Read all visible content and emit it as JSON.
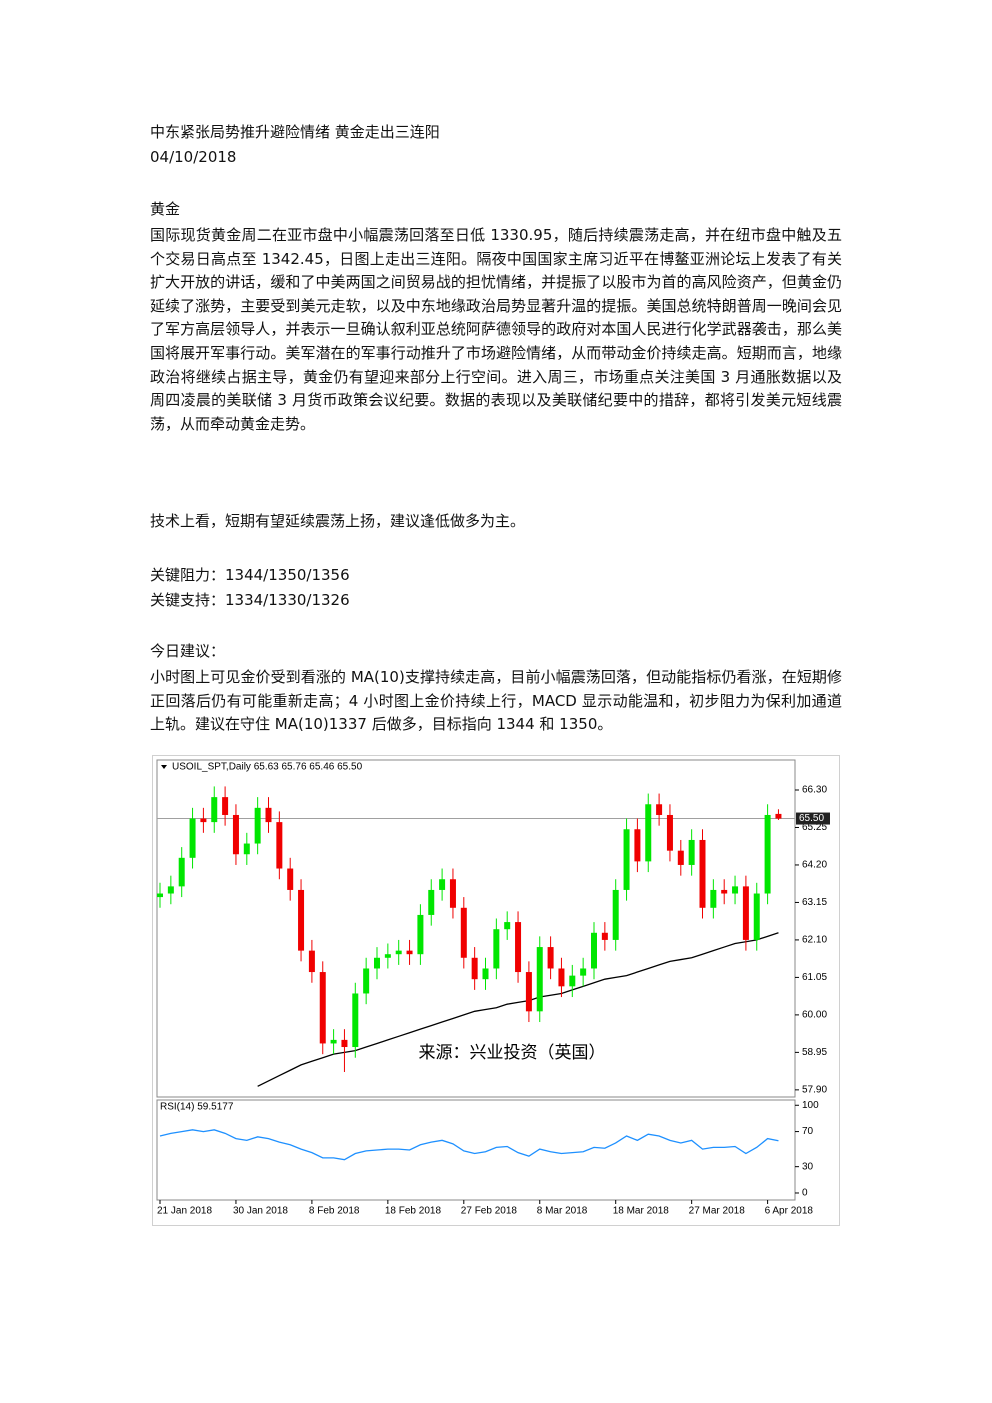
{
  "header": {
    "title": "中东紧张局势推升避险情绪  黄金走出三连阳",
    "date": "04/10/2018"
  },
  "section": "黄金",
  "paragraphs": [
    "国际现货黄金周二在亚市盘中小幅震荡回落至日低 1330.95，随后持续震荡走高，并在纽市盘中触及五个交易日高点至 1342.45，日图上走出三连阳。隔夜中国国家主席习近平在博鳌亚洲论坛上发表了有关扩大开放的讲话，缓和了中美两国之间贸易战的担忧情绪，并提振了以股市为首的高风险资产，但黄金仍延续了涨势，主要受到美元走软，以及中东地缘政治局势显著升温的提振。美国总统特朗普周一晚间会见了军方高层领导人，并表示一旦确认叙利亚总统阿萨德领导的政府对本国人民进行化学武器袭击，那么美国将展开军事行动。美军潜在的军事行动推升了市场避险情绪，从而带动金价持续走高。短期而言，地缘政治将继续占据主导，黄金仍有望迎来部分上行空间。进入周三，市场重点关注美国 3 月通胀数据以及周四凌晨的美联储 3 月货币政策会议纪要。数据的表现以及美联储纪要中的措辞，都将引发美元短线震荡，从而牵动黄金走势。",
    "技术上看，短期有望延续震荡上扬，建议逢低做多为主。"
  ],
  "levels": [
    "关键阻力：1344/1350/1356",
    "关键支持：1334/1330/1326"
  ],
  "advice_heading": "今日建议：",
  "advice": "小时图上可见金价受到看涨的 MA(10)支撑持续走高，目前小幅震荡回落，但动能指标仍看涨，在短期修正回落后仍有可能重新走高；4 小时图上金价持续上行，MACD 显示动能温和，初步阻力为保利加通道上轨。建议在守住 MA(10)1337 后做多，目标指向 1344 和 1350。",
  "chart_data": {
    "type": "candlestick",
    "title": "USOIL_SPT,Daily  65.63 65.76 65.46 65.50",
    "annotation": "来源：兴业投资（英国）",
    "x": [
      "21 Jan 2018",
      null,
      null,
      null,
      null,
      null,
      null,
      "30 Jan 2018",
      null,
      null,
      null,
      null,
      null,
      null,
      "8 Feb 2018",
      null,
      null,
      null,
      null,
      null,
      null,
      "18 Feb 2018",
      null,
      null,
      null,
      null,
      null,
      null,
      "27 Feb 2018",
      null,
      null,
      null,
      null,
      null,
      null,
      "8 Mar 2018",
      null,
      null,
      null,
      null,
      null,
      null,
      "18 Mar 2018",
      null,
      null,
      null,
      null,
      null,
      null,
      "27 Mar 2018",
      null,
      null,
      null,
      null,
      null,
      null,
      "6 Apr 2018",
      null
    ],
    "open": [
      63.3,
      63.4,
      63.6,
      64.4,
      65.5,
      65.4,
      66.1,
      65.6,
      64.5,
      64.8,
      65.8,
      65.4,
      64.1,
      63.5,
      61.8,
      61.2,
      59.2,
      59.3,
      59.1,
      60.6,
      61.3,
      61.6,
      61.7,
      61.8,
      61.7,
      62.8,
      63.5,
      63.8,
      63.0,
      61.6,
      61.0,
      61.3,
      62.4,
      62.6,
      61.2,
      60.1,
      61.9,
      61.3,
      60.8,
      61.1,
      61.3,
      62.3,
      62.1,
      63.5,
      65.2,
      64.3,
      65.9,
      65.6,
      64.6,
      64.2,
      64.9,
      63.0,
      63.5,
      63.4,
      63.6,
      62.1,
      63.4,
      65.63
    ],
    "high": [
      63.7,
      63.9,
      64.7,
      65.8,
      65.8,
      66.4,
      66.4,
      65.9,
      65.1,
      66.1,
      66.1,
      65.7,
      64.4,
      63.8,
      62.1,
      61.5,
      59.6,
      59.6,
      60.9,
      61.6,
      61.9,
      62.0,
      62.1,
      62.1,
      63.1,
      63.8,
      64.1,
      64.1,
      63.3,
      61.9,
      61.6,
      62.7,
      62.9,
      62.9,
      61.5,
      62.2,
      62.2,
      61.6,
      61.4,
      61.6,
      62.6,
      62.6,
      63.8,
      65.5,
      65.5,
      66.2,
      66.2,
      65.9,
      64.9,
      65.2,
      65.2,
      63.8,
      63.8,
      63.9,
      63.9,
      63.7,
      65.9,
      65.76
    ],
    "low": [
      63.0,
      63.1,
      63.3,
      64.1,
      65.1,
      65.1,
      65.3,
      64.2,
      64.2,
      64.5,
      65.1,
      63.8,
      63.2,
      61.5,
      60.9,
      58.9,
      58.9,
      58.4,
      58.8,
      60.3,
      61.0,
      61.3,
      61.4,
      61.4,
      61.4,
      62.5,
      63.2,
      62.7,
      61.3,
      60.7,
      60.7,
      61.0,
      62.1,
      60.9,
      59.8,
      59.8,
      61.0,
      60.5,
      60.5,
      60.8,
      61.0,
      61.8,
      61.8,
      63.2,
      64.0,
      64.0,
      65.3,
      64.3,
      63.9,
      63.9,
      62.7,
      62.7,
      63.1,
      63.1,
      61.8,
      61.8,
      63.1,
      65.46
    ],
    "close": [
      63.4,
      63.6,
      64.4,
      65.5,
      65.4,
      66.1,
      65.6,
      64.5,
      64.8,
      65.8,
      65.4,
      64.1,
      63.5,
      61.8,
      61.2,
      59.2,
      59.3,
      59.1,
      60.6,
      61.3,
      61.6,
      61.7,
      61.8,
      61.7,
      62.8,
      63.5,
      63.8,
      63.0,
      61.6,
      61.0,
      61.3,
      62.4,
      62.6,
      61.2,
      60.1,
      61.9,
      61.3,
      60.8,
      61.1,
      61.3,
      62.3,
      62.1,
      63.5,
      65.2,
      64.3,
      65.9,
      65.6,
      64.6,
      64.2,
      64.9,
      63.0,
      63.5,
      63.4,
      63.6,
      62.1,
      63.4,
      65.6,
      65.5
    ],
    "up_color": "#00e600",
    "down_color": "#f00000",
    "ma": {
      "color": "#000000",
      "values": [
        null,
        null,
        null,
        null,
        null,
        null,
        null,
        null,
        null,
        58.0,
        58.15,
        58.3,
        58.45,
        58.6,
        58.7,
        58.8,
        58.9,
        58.95,
        59.0,
        59.1,
        59.2,
        59.3,
        59.4,
        59.5,
        59.6,
        59.7,
        59.8,
        59.9,
        60.0,
        60.1,
        60.15,
        60.2,
        60.3,
        60.35,
        60.4,
        60.5,
        60.55,
        60.6,
        60.7,
        60.8,
        60.9,
        61.0,
        61.05,
        61.1,
        61.2,
        61.3,
        61.4,
        61.5,
        61.55,
        61.6,
        61.7,
        61.8,
        61.9,
        62.0,
        62.05,
        62.1,
        62.2,
        62.3
      ]
    },
    "current_price": {
      "value": 65.5,
      "label": "65.50"
    },
    "ylim": [
      57.7,
      67.14
    ],
    "yticks": [
      {
        "value": 66.3,
        "label": "66.30"
      },
      65.25,
      {
        "value": 64.2,
        "label": "64.20"
      },
      63.15,
      {
        "value": 62.1,
        "label": "62.10"
      },
      61.05,
      {
        "value": 60.0,
        "label": "60.00"
      },
      58.95,
      {
        "value": 57.9,
        "label": "57.90"
      }
    ],
    "rsi": {
      "title": "RSI(14) 59.5177",
      "color": "#1e90ff",
      "values": [
        65,
        68,
        70,
        72,
        70,
        72,
        68,
        62,
        60,
        64,
        62,
        58,
        55,
        50,
        46,
        40,
        40,
        38,
        45,
        48,
        49,
        50,
        50,
        49,
        55,
        58,
        60,
        56,
        48,
        45,
        47,
        52,
        53,
        46,
        42,
        50,
        47,
        45,
        46,
        47,
        52,
        51,
        57,
        65,
        60,
        67,
        65,
        60,
        57,
        60,
        50,
        52,
        52,
        53,
        45,
        52,
        62,
        59.5
      ],
      "ylim": [
        -8,
        106
      ],
      "yticks": [
        100,
        70,
        30,
        0
      ]
    }
  }
}
